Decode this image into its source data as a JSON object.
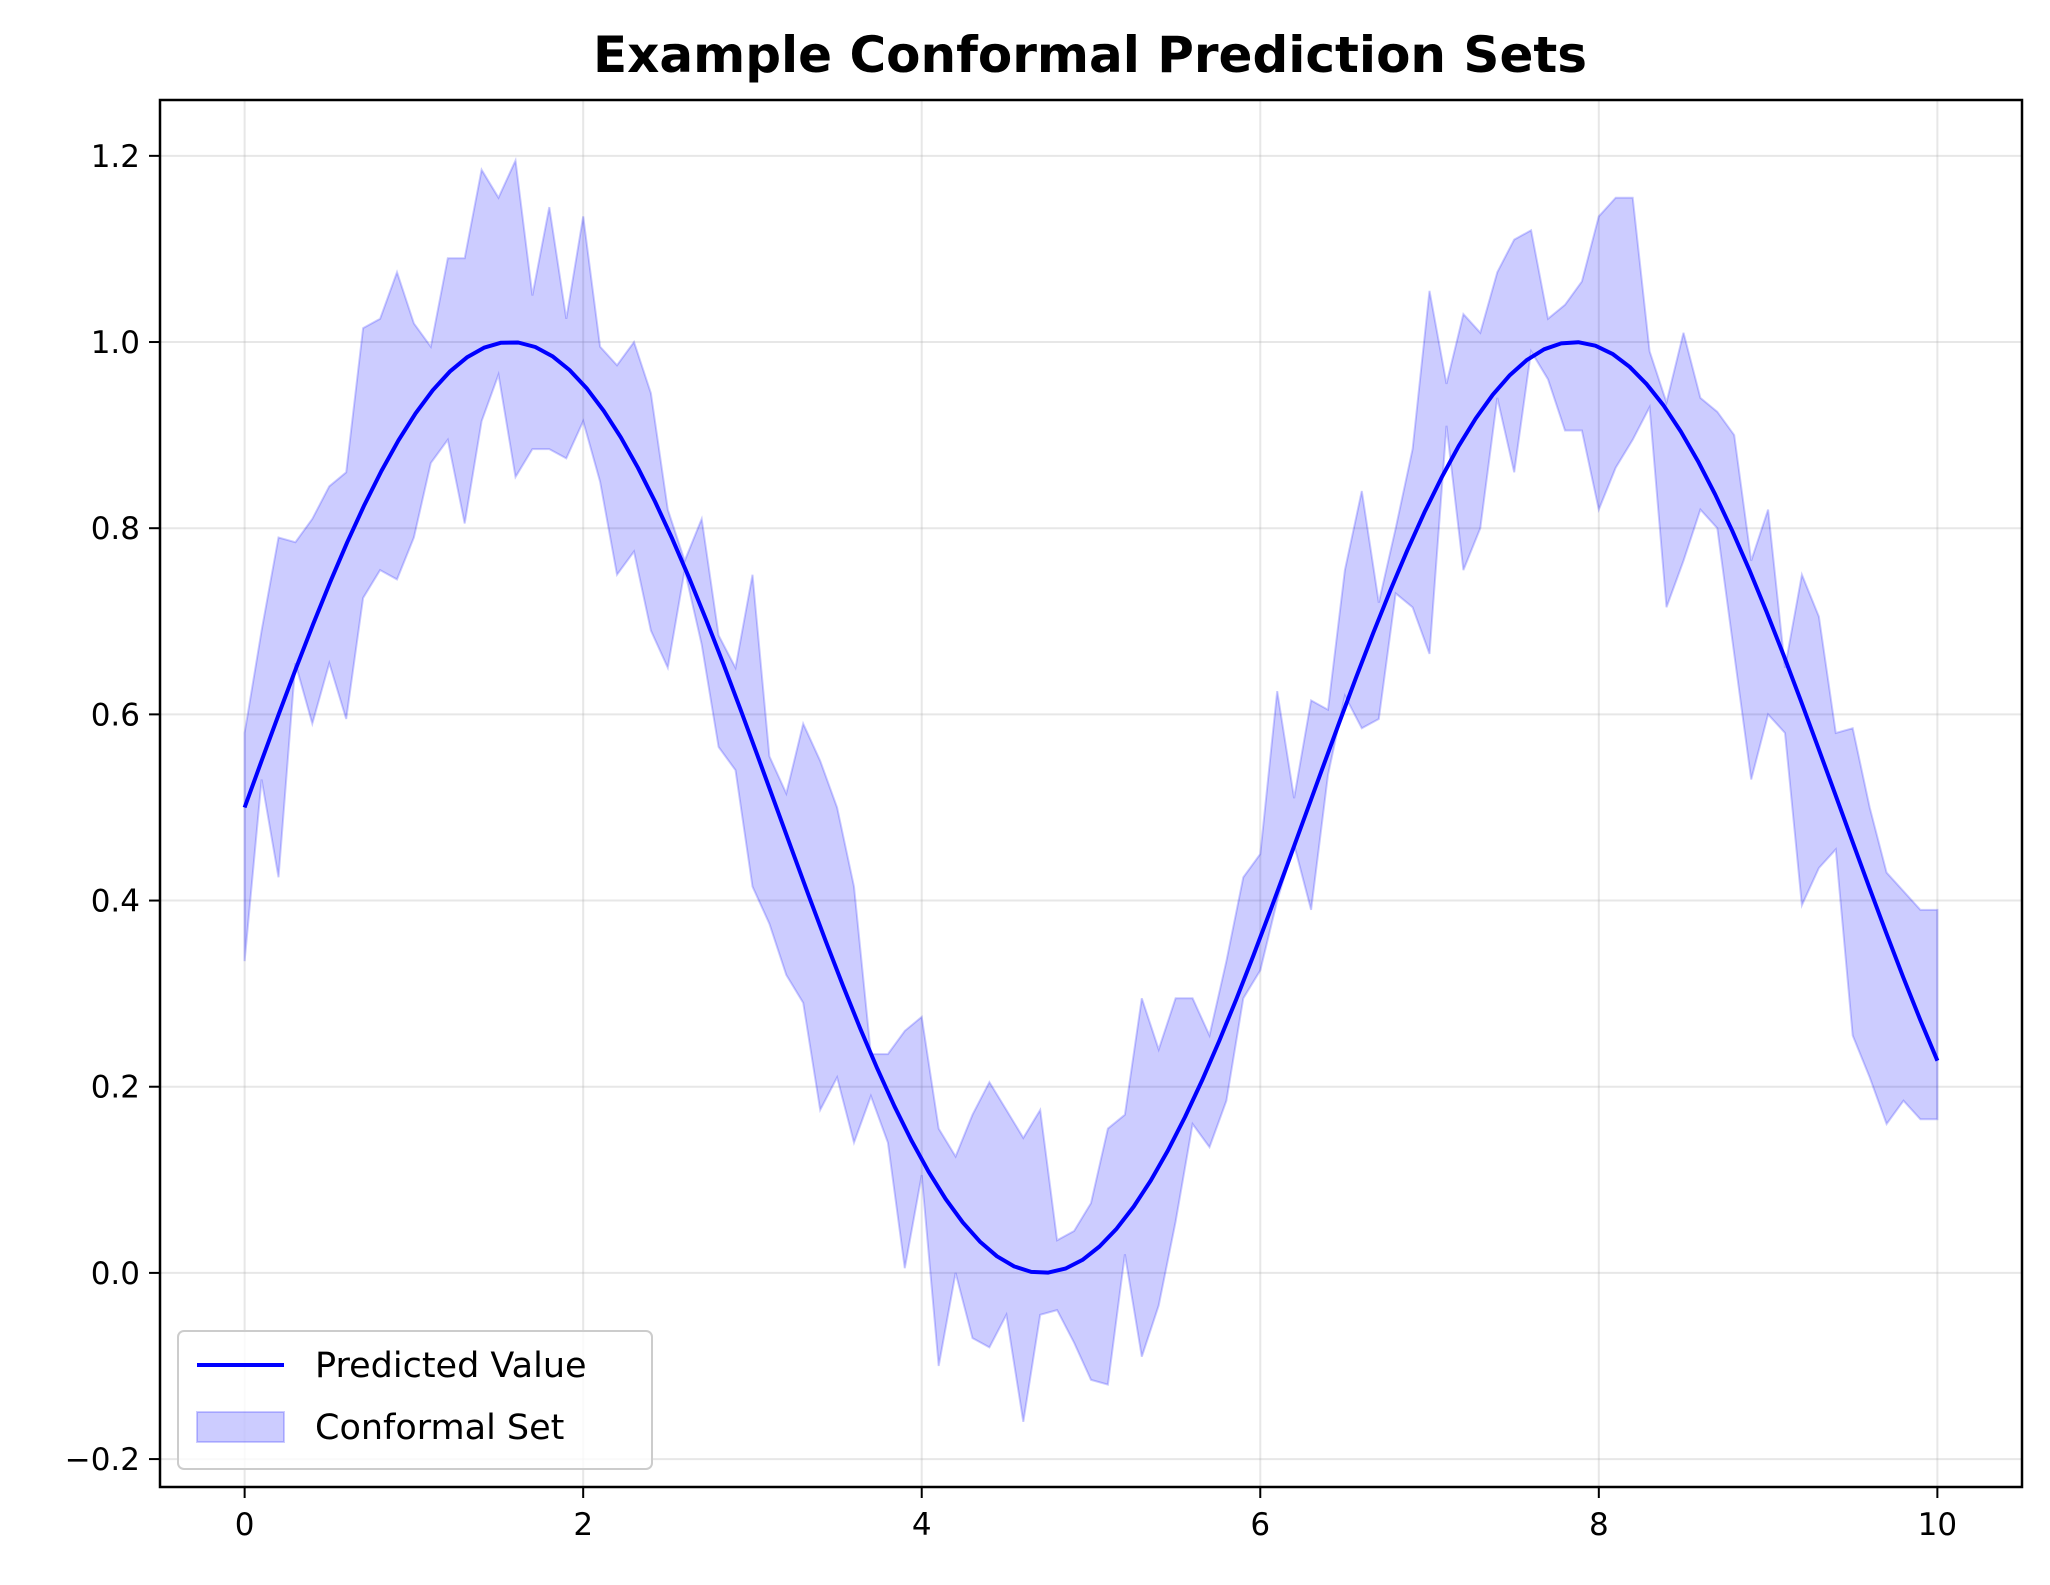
{
  "chart_data": {
    "type": "line",
    "title": "Example Conformal Prediction Sets",
    "xlabel": "",
    "ylabel": "",
    "xlim": [
      -0.5,
      10.5
    ],
    "ylim": [
      -0.23,
      1.26
    ],
    "xticks": [
      0,
      2,
      4,
      6,
      8,
      10
    ],
    "xtick_labels": [
      "0",
      "2",
      "4",
      "6",
      "8",
      "10"
    ],
    "yticks": [
      -0.2,
      0.0,
      0.2,
      0.4,
      0.6,
      0.8,
      1.0,
      1.2
    ],
    "ytick_labels": [
      "−0.2",
      "0.0",
      "0.2",
      "0.4",
      "0.6",
      "0.8",
      "1.0",
      "1.2"
    ],
    "grid": true,
    "legend_position": "lower-left",
    "series": [
      {
        "name": "Predicted Value",
        "kind": "line",
        "color": "#0000ff",
        "function": "0.5 + 0.5*sin(x)",
        "x_range": [
          0,
          10
        ],
        "points": 100
      },
      {
        "name": "Conformal Set",
        "kind": "band",
        "color": "#0000ff",
        "fill_alpha": 0.2,
        "x": [
          0,
          0.1,
          0.2,
          0.3,
          0.4,
          0.5,
          0.6,
          0.7,
          0.8,
          0.9,
          1.0,
          1.1,
          1.2,
          1.3,
          1.4,
          1.5,
          1.6,
          1.7,
          1.8,
          1.9,
          2.0,
          2.1,
          2.2,
          2.3,
          2.4,
          2.5,
          2.6,
          2.7,
          2.8,
          2.9,
          3.0,
          3.1,
          3.2,
          3.3,
          3.4,
          3.5,
          3.6,
          3.7,
          3.8,
          3.9,
          4.0,
          4.1,
          4.2,
          4.3,
          4.4,
          4.5,
          4.6,
          4.7,
          4.8,
          4.9,
          5.0,
          5.1,
          5.2,
          5.3,
          5.4,
          5.5,
          5.6,
          5.7,
          5.8,
          5.9,
          6.0,
          6.1,
          6.2,
          6.3,
          6.4,
          6.5,
          6.6,
          6.7,
          6.8,
          6.9,
          7.0,
          7.1,
          7.2,
          7.3,
          7.4,
          7.5,
          7.6,
          7.7,
          7.8,
          7.9,
          8.0,
          8.1,
          8.2,
          8.3,
          8.4,
          8.5,
          8.6,
          8.7,
          8.8,
          8.9,
          9.0,
          9.1,
          9.2,
          9.3,
          9.4,
          9.5,
          9.6,
          9.7,
          9.8,
          9.9,
          10.0
        ],
        "upper": [
          0.58,
          0.69,
          0.79,
          0.785,
          0.81,
          0.845,
          0.86,
          1.015,
          1.025,
          1.075,
          1.02,
          0.995,
          1.09,
          1.09,
          1.185,
          1.155,
          1.195,
          1.05,
          1.145,
          1.025,
          1.135,
          0.995,
          0.975,
          1.0,
          0.945,
          0.82,
          0.765,
          0.81,
          0.685,
          0.65,
          0.75,
          0.555,
          0.515,
          0.59,
          0.55,
          0.5,
          0.415,
          0.235,
          0.235,
          0.26,
          0.275,
          0.155,
          0.125,
          0.17,
          0.205,
          0.175,
          0.145,
          0.175,
          0.035,
          0.045,
          0.075,
          0.155,
          0.17,
          0.295,
          0.24,
          0.295,
          0.295,
          0.255,
          0.335,
          0.425,
          0.45,
          0.625,
          0.51,
          0.615,
          0.605,
          0.755,
          0.84,
          0.72,
          0.8,
          0.885,
          1.055,
          0.955,
          1.03,
          1.01,
          1.075,
          1.11,
          1.12,
          1.025,
          1.04,
          1.065,
          1.135,
          1.155,
          1.155,
          0.99,
          0.935,
          1.01,
          0.94,
          0.925,
          0.9,
          0.765,
          0.82,
          0.65,
          0.75,
          0.705,
          0.58,
          0.585,
          0.5,
          0.43,
          0.41,
          0.39,
          0.39
        ],
        "lower": [
          0.335,
          0.53,
          0.425,
          0.655,
          0.59,
          0.655,
          0.595,
          0.725,
          0.755,
          0.745,
          0.79,
          0.87,
          0.895,
          0.805,
          0.915,
          0.965,
          0.855,
          0.885,
          0.885,
          0.875,
          0.915,
          0.85,
          0.75,
          0.775,
          0.69,
          0.65,
          0.755,
          0.675,
          0.565,
          0.54,
          0.415,
          0.375,
          0.32,
          0.29,
          0.175,
          0.21,
          0.14,
          0.19,
          0.14,
          0.005,
          0.105,
          -0.1,
          -0.0,
          -0.07,
          -0.08,
          -0.045,
          -0.16,
          -0.045,
          -0.04,
          -0.075,
          -0.115,
          -0.12,
          0.02,
          -0.09,
          -0.035,
          0.055,
          0.16,
          0.135,
          0.185,
          0.295,
          0.325,
          0.4,
          0.46,
          0.39,
          0.535,
          0.62,
          0.585,
          0.595,
          0.73,
          0.715,
          0.665,
          0.91,
          0.755,
          0.8,
          0.94,
          0.86,
          0.99,
          0.96,
          0.905,
          0.905,
          0.82,
          0.865,
          0.895,
          0.93,
          0.715,
          0.765,
          0.82,
          0.8,
          0.665,
          0.53,
          0.6,
          0.58,
          0.395,
          0.435,
          0.455,
          0.255,
          0.21,
          0.16,
          0.185,
          0.165,
          0.165
        ]
      }
    ]
  }
}
